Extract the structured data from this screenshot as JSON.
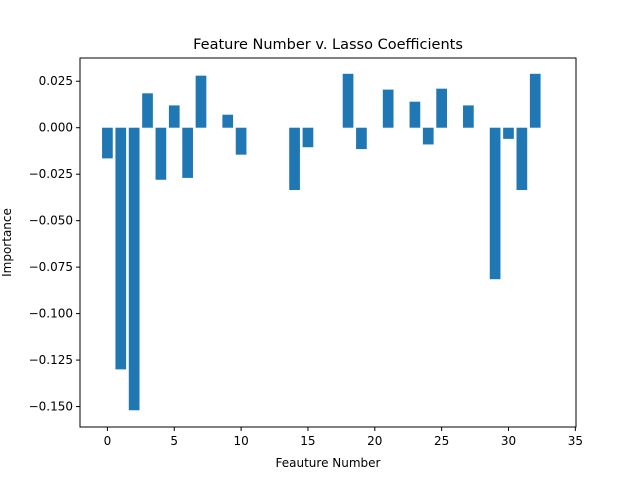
{
  "chart_data": {
    "type": "bar",
    "title": "Feature Number v. Lasso Coefficients",
    "xlabel": "Feauture Number",
    "ylabel": "Importance",
    "xlim": [
      -2.05,
      35.05
    ],
    "ylim": [
      -0.161,
      0.0375
    ],
    "xticks": [
      0,
      5,
      10,
      15,
      20,
      25,
      30,
      35
    ],
    "xtick_labels": [
      "0",
      "5",
      "10",
      "15",
      "20",
      "25",
      "30",
      "35"
    ],
    "yticks": [
      0.025,
      0.0,
      -0.025,
      -0.05,
      -0.075,
      -0.1,
      -0.125,
      -0.15
    ],
    "ytick_labels": [
      "0.025",
      "0.000",
      "−0.025",
      "−0.050",
      "−0.075",
      "−0.100",
      "−0.125",
      "−0.150"
    ],
    "grid": false,
    "bar_color": "#1f77b4",
    "x": [
      0,
      1,
      2,
      3,
      4,
      5,
      6,
      7,
      8,
      9,
      10,
      11,
      12,
      13,
      14,
      15,
      16,
      17,
      18,
      19,
      20,
      21,
      22,
      23,
      24,
      25,
      26,
      27,
      28,
      29,
      30,
      31,
      32
    ],
    "values": [
      -0.0165,
      -0.13,
      -0.152,
      0.0185,
      -0.028,
      0.012,
      -0.027,
      0.028,
      0.0,
      0.007,
      -0.0145,
      0.0,
      0.0,
      0.0,
      -0.0335,
      -0.0105,
      0.0,
      0.0,
      0.029,
      -0.0115,
      0.0,
      0.0205,
      0.0,
      0.014,
      -0.009,
      0.021,
      0.0,
      0.012,
      0.0,
      -0.0815,
      -0.006,
      -0.0335,
      0.029
    ]
  }
}
